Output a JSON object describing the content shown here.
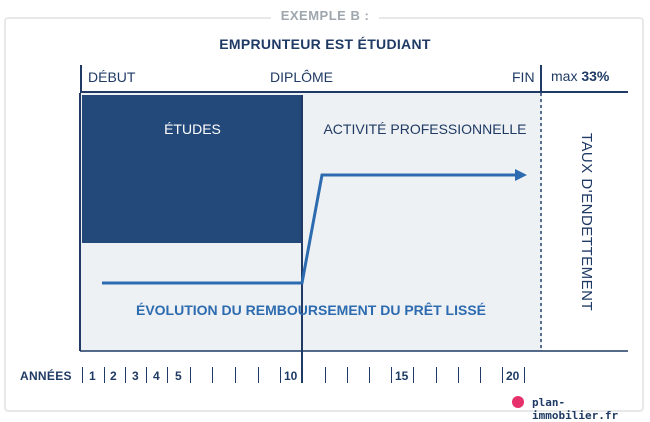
{
  "supertitle": "EXEMPLE B :",
  "title": "EMPRUNTEUR EST ÉTUDIANT",
  "header": {
    "start": "DÉBUT",
    "diploma": "DIPLÔME",
    "end": "FIN",
    "max_prefix": "max",
    "max_value": "33%"
  },
  "zones": {
    "studies": "ÉTUDES",
    "activity": "ACTIVITÉ PROFESSIONNELLE"
  },
  "evolution_label": "ÉVOLUTION DU REMBOURSEMENT DU PRÊT LISSÉ",
  "side_label": "TAUX D'ENDETTEMENT",
  "axis": {
    "label": "ANNÉES",
    "ticks": [
      "1",
      "2",
      "3",
      "4",
      "5",
      "10",
      "15",
      "20"
    ]
  },
  "brand": "plan-immobilier.fr",
  "colors": {
    "navy": "#1f3a64",
    "study_block": "#23497a",
    "line_blue": "#2d6bb0",
    "background": "#eef1f3",
    "brand_pink": "#e6316a"
  }
}
